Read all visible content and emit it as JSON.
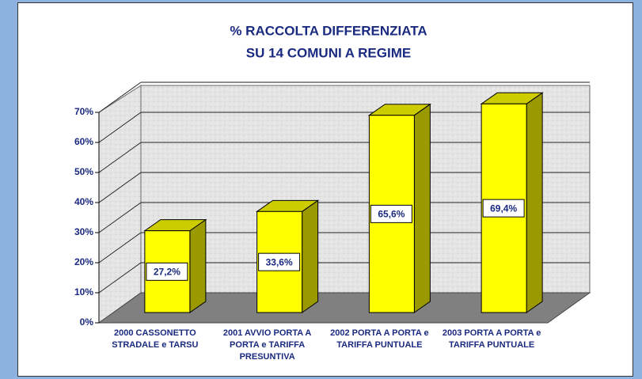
{
  "chart_data": {
    "type": "bar3d",
    "title": [
      "% RACCOLTA DIFFERENZIATA",
      "SU 14 COMUNI A REGIME"
    ],
    "categories": [
      "2000 CASSONETTO STRADALE e TARSU",
      "2001 AVVIO PORTA A PORTA e TARIFFA PRESUNTIVA",
      "2002 PORTA A PORTA e TARIFFA PUNTUALE",
      "2003 PORTA A PORTA e TARIFFA PUNTUALE"
    ],
    "values": [
      27.2,
      33.6,
      65.6,
      69.4
    ],
    "value_labels": [
      "27,2%",
      "33,6%",
      "65,6%",
      "69,4%"
    ],
    "color": "#ffff00",
    "ylim": [
      0,
      70
    ],
    "yticks": [
      {
        "value": 0,
        "label": "0%"
      },
      {
        "value": 10,
        "label": "10%"
      },
      {
        "value": 20,
        "label": "20%"
      },
      {
        "value": 30,
        "label": "30%"
      },
      {
        "value": 40,
        "label": "40%"
      },
      {
        "value": 50,
        "label": "50%"
      },
      {
        "value": 60,
        "label": "60%"
      },
      {
        "value": 70,
        "label": "70%"
      }
    ],
    "grid": true
  }
}
